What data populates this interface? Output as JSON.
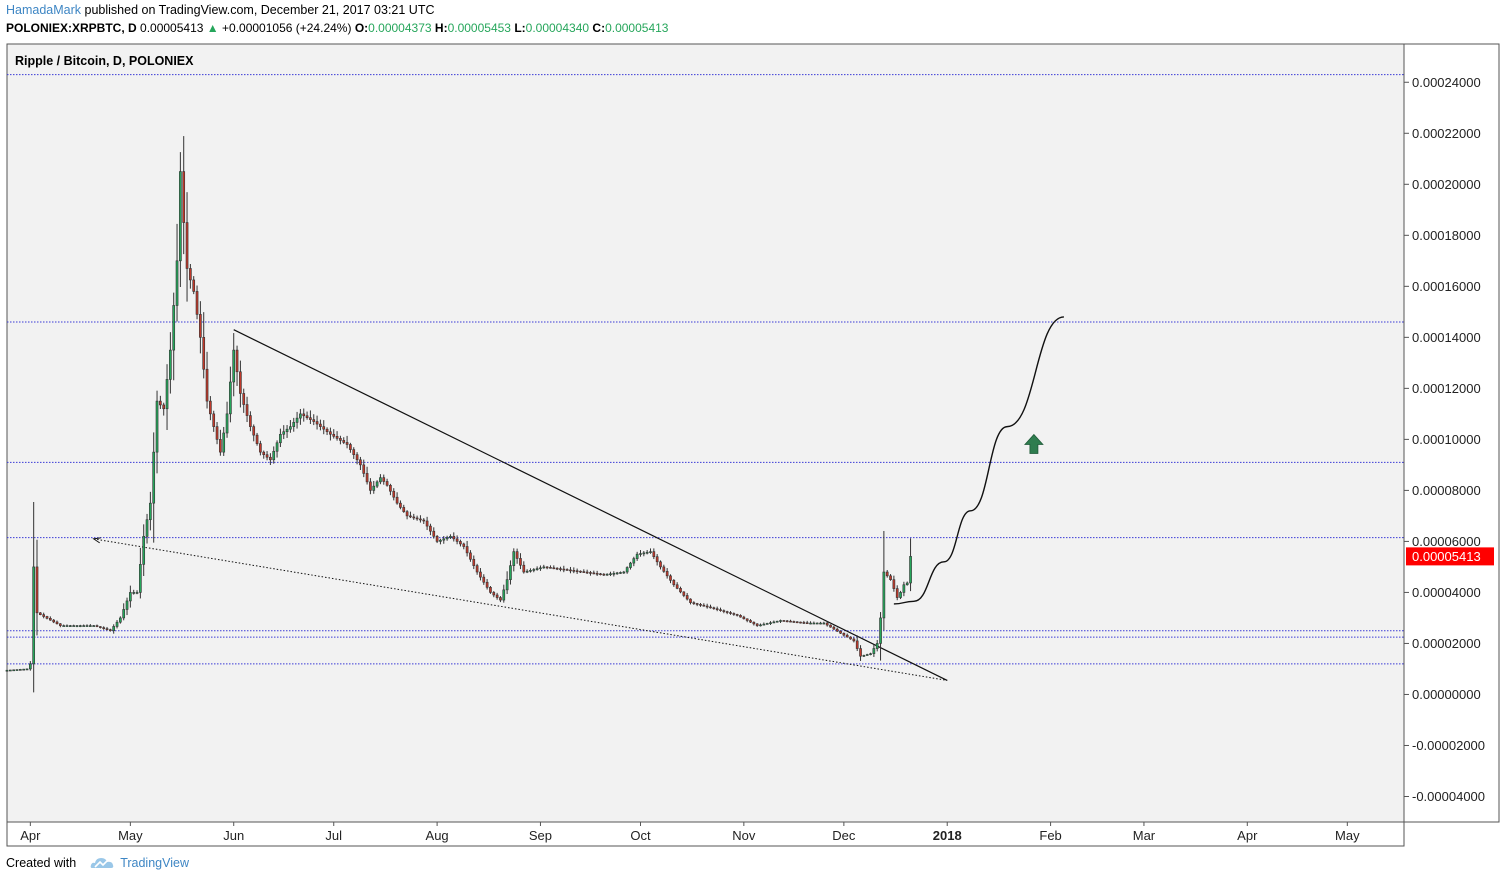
{
  "header": {
    "author": "HamadaMark",
    "published": " published on TradingView.com, December 21, 2017 03:21 UTC"
  },
  "quote": {
    "symbol": "POLONIEX:XRPBTC, D",
    "last": "0.00005413",
    "arrow": "▲",
    "change": "+0.00001056 (+24.24%)",
    "open_label": "O:",
    "open": "0.00004373",
    "high_label": "H:",
    "high": "0.00005453",
    "low_label": "L:",
    "low": "0.00004340",
    "close_label": "C:",
    "close": "0.00005413"
  },
  "footer": {
    "created_with": "Created with",
    "brand": "TradingView"
  },
  "colors": {
    "up": "#26a65b",
    "down": "#c0392b",
    "hline": "#3b3bd6",
    "price_label_bg": "#ff0000",
    "arrow": "#2f7d4f",
    "author": "#3e86c4"
  },
  "chart_data": {
    "type": "candlestick",
    "title": "Ripple / Bitcoin, D, POLONIEX",
    "ylim": [
      -5e-05,
      0.000255
    ],
    "y_ticks": [
      "0.00024000",
      "0.00022000",
      "0.00020000",
      "0.00018000",
      "0.00016000",
      "0.00014000",
      "0.00012000",
      "0.00010000",
      "0.00008000",
      "0.00006000",
      "0.00004000",
      "0.00002000",
      "0.00000000",
      "-0.00002000",
      "-0.00004000"
    ],
    "y_tick_values": [
      0.00024,
      0.00022,
      0.0002,
      0.00018,
      0.00016,
      0.00014,
      0.00012,
      0.0001,
      8e-05,
      6e-05,
      4e-05,
      2e-05,
      0,
      -2e-05,
      -4e-05
    ],
    "x_range": [
      "2017-03-25",
      "2018-05-18"
    ],
    "x_ticks": [
      {
        "label": "Apr",
        "date": "2017-04-01",
        "bold": false
      },
      {
        "label": "May",
        "date": "2017-05-01",
        "bold": false
      },
      {
        "label": "Jun",
        "date": "2017-06-01",
        "bold": false
      },
      {
        "label": "Jul",
        "date": "2017-07-01",
        "bold": false
      },
      {
        "label": "Aug",
        "date": "2017-08-01",
        "bold": false
      },
      {
        "label": "Sep",
        "date": "2017-09-01",
        "bold": false
      },
      {
        "label": "Oct",
        "date": "2017-10-01",
        "bold": false
      },
      {
        "label": "Nov",
        "date": "2017-11-01",
        "bold": false
      },
      {
        "label": "Dec",
        "date": "2017-12-01",
        "bold": false
      },
      {
        "label": "2018",
        "date": "2018-01-01",
        "bold": true
      },
      {
        "label": "Feb",
        "date": "2018-02-01",
        "bold": false
      },
      {
        "label": "Mar",
        "date": "2018-03-01",
        "bold": false
      },
      {
        "label": "Apr",
        "date": "2018-04-01",
        "bold": false
      },
      {
        "label": "May",
        "date": "2018-05-01",
        "bold": false
      }
    ],
    "last_price_label": "0.00005413",
    "last_price": 5.413e-05,
    "horizontal_levels": [
      0.000243,
      0.000146,
      9.1e-05,
      6.15e-05,
      2.5e-05,
      2.25e-05,
      1.2e-05
    ],
    "close_anchors": [
      [
        "2017-03-25",
        9.5e-06
      ],
      [
        "2017-03-31",
        1e-05
      ],
      [
        "2017-04-01",
        1.2e-05
      ],
      [
        "2017-04-02",
        5e-05
      ],
      [
        "2017-04-03",
        3.2e-05
      ],
      [
        "2017-04-10",
        2.7e-05
      ],
      [
        "2017-04-20",
        2.7e-05
      ],
      [
        "2017-04-25",
        2.5e-05
      ],
      [
        "2017-04-28",
        3e-05
      ],
      [
        "2017-05-01",
        4e-05
      ],
      [
        "2017-05-03",
        4e-05
      ],
      [
        "2017-05-05",
        6.2e-05
      ],
      [
        "2017-05-07",
        7.5e-05
      ],
      [
        "2017-05-09",
        0.000115
      ],
      [
        "2017-05-11",
        0.000112
      ],
      [
        "2017-05-13",
        0.000135
      ],
      [
        "2017-05-15",
        0.00017
      ],
      [
        "2017-05-16",
        0.000205
      ],
      [
        "2017-05-17",
        0.000185
      ],
      [
        "2017-05-18",
        0.000167
      ],
      [
        "2017-05-20",
        0.000158
      ],
      [
        "2017-05-22",
        0.00014
      ],
      [
        "2017-05-24",
        0.000115
      ],
      [
        "2017-05-26",
        0.000105
      ],
      [
        "2017-05-28",
        9.5e-05
      ],
      [
        "2017-05-30",
        0.00011
      ],
      [
        "2017-06-01",
        0.000135
      ],
      [
        "2017-06-03",
        0.000118
      ],
      [
        "2017-06-06",
        0.000105
      ],
      [
        "2017-06-09",
        9.5e-05
      ],
      [
        "2017-06-12",
        9.2e-05
      ],
      [
        "2017-06-15",
        0.000102
      ],
      [
        "2017-06-18",
        0.000105
      ],
      [
        "2017-06-21",
        0.00011
      ],
      [
        "2017-06-25",
        0.000107
      ],
      [
        "2017-06-30",
        0.000102
      ],
      [
        "2017-07-05",
        9.8e-05
      ],
      [
        "2017-07-09",
        9e-05
      ],
      [
        "2017-07-12",
        8e-05
      ],
      [
        "2017-07-15",
        8.5e-05
      ],
      [
        "2017-07-17",
        8.2e-05
      ],
      [
        "2017-07-20",
        7.5e-05
      ],
      [
        "2017-07-23",
        7e-05
      ],
      [
        "2017-07-28",
        6.8e-05
      ],
      [
        "2017-08-01",
        6e-05
      ],
      [
        "2017-08-05",
        6.2e-05
      ],
      [
        "2017-08-09",
        5.8e-05
      ],
      [
        "2017-08-13",
        4.8e-05
      ],
      [
        "2017-08-17",
        4e-05
      ],
      [
        "2017-08-20",
        3.7e-05
      ],
      [
        "2017-08-22",
        4.5e-05
      ],
      [
        "2017-08-24",
        5.6e-05
      ],
      [
        "2017-08-27",
        4.8e-05
      ],
      [
        "2017-09-02",
        5e-05
      ],
      [
        "2017-09-08",
        4.9e-05
      ],
      [
        "2017-09-14",
        4.8e-05
      ],
      [
        "2017-09-20",
        4.7e-05
      ],
      [
        "2017-09-26",
        4.8e-05
      ],
      [
        "2017-09-30",
        5.5e-05
      ],
      [
        "2017-10-04",
        5.6e-05
      ],
      [
        "2017-10-07",
        5e-05
      ],
      [
        "2017-10-11",
        4.3e-05
      ],
      [
        "2017-10-16",
        3.6e-05
      ],
      [
        "2017-10-22",
        3.4e-05
      ],
      [
        "2017-10-30",
        3.1e-05
      ],
      [
        "2017-11-05",
        2.7e-05
      ],
      [
        "2017-11-12",
        2.9e-05
      ],
      [
        "2017-11-20",
        2.8e-05
      ],
      [
        "2017-11-25",
        2.8e-05
      ],
      [
        "2017-11-30",
        2.4e-05
      ],
      [
        "2017-12-04",
        2.1e-05
      ],
      [
        "2017-12-06",
        1.5e-05
      ],
      [
        "2017-12-09",
        1.6e-05
      ],
      [
        "2017-12-11",
        2e-05
      ],
      [
        "2017-12-12",
        3e-05
      ],
      [
        "2017-12-13",
        4.8e-05
      ],
      [
        "2017-12-15",
        4.5e-05
      ],
      [
        "2017-12-17",
        3.8e-05
      ],
      [
        "2017-12-18",
        4e-05
      ],
      [
        "2017-12-19",
        4.3e-05
      ],
      [
        "2017-12-20",
        4.37e-05
      ],
      [
        "2017-12-21",
        5.413e-05
      ]
    ],
    "trendlines": [
      {
        "style": "solid",
        "from": [
          "2017-06-01",
          0.000143
        ],
        "to": [
          "2018-01-01",
          5.5e-06
        ]
      },
      {
        "style": "dotted",
        "from": [
          "2017-04-20",
          6.1e-05
        ],
        "to": [
          "2018-01-01",
          5.5e-06
        ]
      }
    ],
    "projection": [
      [
        "2017-12-16",
        3.55e-05
      ],
      [
        "2017-12-22",
        3.65e-05
      ],
      [
        "2017-12-31",
        5.2e-05
      ],
      [
        "2018-01-08",
        7.2e-05
      ],
      [
        "2018-01-19",
        0.000105
      ],
      [
        "2018-02-05",
        0.000148
      ]
    ],
    "arrow_marker": {
      "direction": "up",
      "date": "2018-01-27",
      "value": 9.8e-05
    }
  }
}
